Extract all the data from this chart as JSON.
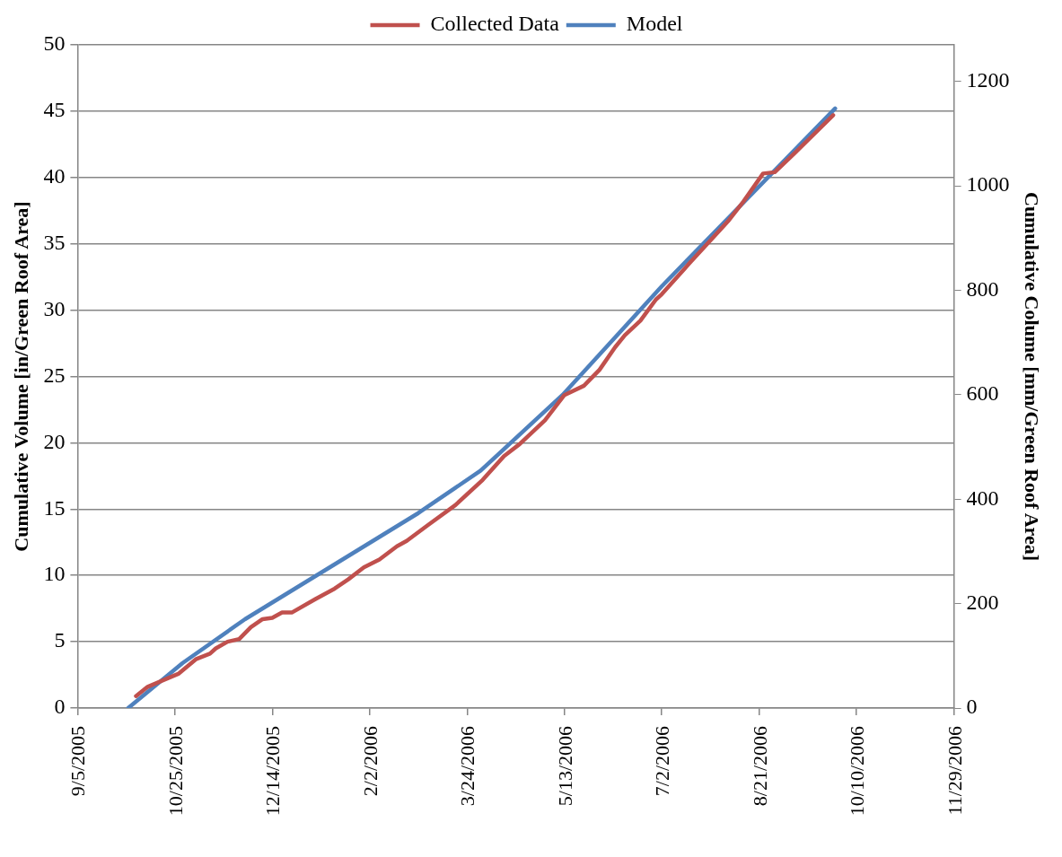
{
  "chart_data": {
    "type": "line",
    "ylabel": "Cumulative Volume [in/Green Roof Area]",
    "y2label": "Cumulative Colume [mm/Green Roof Area]",
    "xlim": [
      "2005-09-05",
      "2006-11-29"
    ],
    "xticks": [
      {
        "value": "2005-09-05",
        "label": "9/5/2005"
      },
      {
        "value": "2005-10-25",
        "label": "10/25/2005"
      },
      {
        "value": "2005-12-14",
        "label": "12/14/2005"
      },
      {
        "value": "2006-02-02",
        "label": "2/2/2006"
      },
      {
        "value": "2006-03-24",
        "label": "3/24/2006"
      },
      {
        "value": "2006-05-13",
        "label": "5/13/2006"
      },
      {
        "value": "2006-07-02",
        "label": "7/2/2006"
      },
      {
        "value": "2006-08-21",
        "label": "8/21/2006"
      },
      {
        "value": "2006-10-10",
        "label": "10/10/2006"
      },
      {
        "value": "2006-11-29",
        "label": "11/29/2006"
      }
    ],
    "ylim": [
      0,
      50
    ],
    "yticks": [
      0,
      5,
      10,
      15,
      20,
      25,
      30,
      35,
      40,
      45,
      50
    ],
    "y2lim": [
      0,
      1270
    ],
    "y2ticks": [
      0,
      200,
      400,
      600,
      800,
      1000,
      1200
    ],
    "grid": "y",
    "legend": "top",
    "marker": "none",
    "line_style": "solid",
    "series": [
      {
        "name": "Collected Data",
        "color": "#c0504d",
        "x": [
          "2005-10-05",
          "2005-10-11",
          "2005-10-27",
          "2005-11-05",
          "2005-11-12",
          "2005-11-15",
          "2005-11-21",
          "2005-11-27",
          "2005-12-03",
          "2005-12-09",
          "2005-12-14",
          "2005-12-19",
          "2005-12-24",
          "2006-01-05",
          "2006-01-15",
          "2006-01-22",
          "2006-01-30",
          "2006-02-07",
          "2006-02-16",
          "2006-02-21",
          "2006-03-04",
          "2006-03-18",
          "2006-04-01",
          "2006-04-12",
          "2006-04-20",
          "2006-05-03",
          "2006-05-13",
          "2006-05-23",
          "2006-05-31",
          "2006-06-08",
          "2006-06-13",
          "2006-06-21",
          "2006-06-29",
          "2006-07-02",
          "2006-07-16",
          "2006-08-05",
          "2006-08-13",
          "2006-08-23",
          "2006-08-29",
          "2006-09-08",
          "2006-09-17",
          "2006-09-28"
        ],
        "values": [
          0.9,
          1.6,
          2.6,
          3.7,
          4.1,
          4.5,
          5.0,
          5.2,
          6.1,
          6.7,
          6.8,
          7.2,
          7.2,
          8.2,
          9.0,
          9.7,
          10.6,
          11.2,
          12.2,
          12.6,
          13.8,
          15.3,
          17.2,
          19.0,
          19.9,
          21.7,
          23.6,
          24.3,
          25.5,
          27.2,
          28.1,
          29.2,
          30.8,
          31.2,
          33.5,
          36.7,
          38.2,
          40.3,
          40.4,
          41.8,
          43.1,
          44.7
        ]
      },
      {
        "name": "Model",
        "color": "#4f81bd",
        "x": [
          "2005-10-01",
          "2005-10-29",
          "2005-11-30",
          "2006-02-27",
          "2006-03-31",
          "2006-05-12",
          "2006-07-02",
          "2006-09-29"
        ],
        "values": [
          0,
          3.4,
          6.7,
          14.7,
          17.9,
          23.6,
          31.8,
          45.2
        ]
      }
    ]
  }
}
